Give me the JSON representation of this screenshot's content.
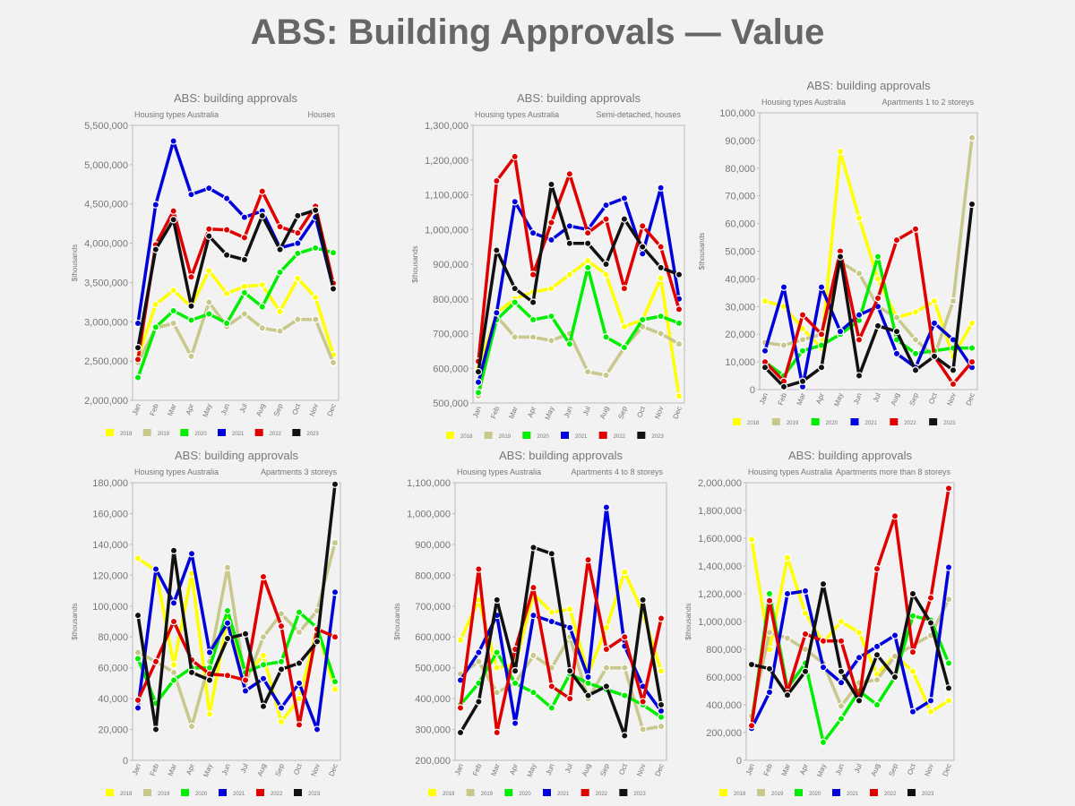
{
  "title": "ABS: Building Approvals — Value",
  "colors": {
    "2018": "#ffff00",
    "2019": "#c8c88c",
    "2020": "#00ee00",
    "2021": "#0000dd",
    "2022": "#e00000",
    "2023": "#111111",
    "marker_edge": "#ffffff",
    "plot_border": "#bbbbbb",
    "text": "#777777"
  },
  "chart_data": [
    {
      "type": "line",
      "title": "ABS: building approvals",
      "subtitle_left": "Housing types Australia",
      "subtitle_right": "Houses",
      "ylabel": "$thousands",
      "ylim": [
        2000000,
        5500000
      ],
      "yticks": [
        2000000,
        2500000,
        3000000,
        3500000,
        4000000,
        4500000,
        5000000,
        5500000
      ],
      "categories": [
        "Jan",
        "Feb",
        "Mar",
        "Apr",
        "May",
        "Jun",
        "Jul",
        "Aug",
        "Sep",
        "Oct",
        "Nov",
        "Dec"
      ],
      "series": [
        {
          "name": "2018",
          "values": [
            2550000,
            3220000,
            3400000,
            3190000,
            3650000,
            3360000,
            3450000,
            3470000,
            3130000,
            3550000,
            3310000,
            2580000
          ]
        },
        {
          "name": "2019",
          "values": [
            2480000,
            2920000,
            2980000,
            2560000,
            3250000,
            2940000,
            3100000,
            2920000,
            2880000,
            3030000,
            3030000,
            2480000
          ]
        },
        {
          "name": "2020",
          "values": [
            2290000,
            2930000,
            3140000,
            3020000,
            3100000,
            2980000,
            3370000,
            3190000,
            3630000,
            3870000,
            3940000,
            3880000
          ]
        },
        {
          "name": "2021",
          "values": [
            2980000,
            4490000,
            5300000,
            4620000,
            4700000,
            4570000,
            4330000,
            4410000,
            3940000,
            4000000,
            4330000,
            3430000
          ]
        },
        {
          "name": "2022",
          "values": [
            2520000,
            3980000,
            4410000,
            3570000,
            4180000,
            4170000,
            4070000,
            4660000,
            4210000,
            4130000,
            4470000,
            3490000
          ]
        },
        {
          "name": "2023",
          "values": [
            2670000,
            3920000,
            4300000,
            3200000,
            4090000,
            3850000,
            3790000,
            4350000,
            3920000,
            4350000,
            4420000,
            3420000
          ]
        }
      ]
    },
    {
      "type": "line",
      "title": "ABS: building approvals",
      "subtitle_left": "Housing types Australia",
      "subtitle_right": "Semi-detached, houses",
      "ylabel": "$thousands",
      "ylim": [
        500000,
        1300000
      ],
      "yticks": [
        500000,
        600000,
        700000,
        800000,
        900000,
        1000000,
        1100000,
        1200000,
        1300000
      ],
      "categories": [
        "Jan",
        "Feb",
        "Mar",
        "Apr",
        "May",
        "Jun",
        "Jul",
        "Aug",
        "Sep",
        "Oct",
        "Nov",
        "Dec"
      ],
      "series": [
        {
          "name": "2018",
          "values": [
            600000,
            760000,
            800000,
            820000,
            830000,
            870000,
            910000,
            870000,
            720000,
            740000,
            860000,
            520000
          ]
        },
        {
          "name": "2019",
          "values": [
            520000,
            750000,
            690000,
            690000,
            680000,
            700000,
            590000,
            580000,
            660000,
            720000,
            700000,
            670000
          ]
        },
        {
          "name": "2020",
          "values": [
            530000,
            740000,
            790000,
            740000,
            750000,
            670000,
            890000,
            690000,
            660000,
            740000,
            750000,
            730000
          ]
        },
        {
          "name": "2021",
          "values": [
            560000,
            760000,
            1080000,
            990000,
            970000,
            1010000,
            1000000,
            1070000,
            1090000,
            930000,
            1120000,
            800000
          ]
        },
        {
          "name": "2022",
          "values": [
            620000,
            1140000,
            1210000,
            870000,
            1020000,
            1160000,
            990000,
            1030000,
            830000,
            1010000,
            950000,
            770000
          ]
        },
        {
          "name": "2023",
          "values": [
            590000,
            940000,
            830000,
            790000,
            1130000,
            960000,
            960000,
            900000,
            1030000,
            950000,
            890000,
            870000
          ]
        }
      ]
    },
    {
      "type": "line",
      "title": "ABS: building approvals",
      "subtitle_left": "Housing types Australia",
      "subtitle_right": "Apartments 1 to 2 storeys",
      "ylabel": "$thousands",
      "ylim": [
        0,
        100000
      ],
      "yticks": [
        0,
        10000,
        20000,
        30000,
        40000,
        50000,
        60000,
        70000,
        80000,
        90000,
        100000
      ],
      "categories": [
        "Jan",
        "Feb",
        "Mar",
        "Apr",
        "May",
        "Jun",
        "Jul",
        "Aug",
        "Sep",
        "Oct",
        "Nov",
        "Dec"
      ],
      "series": [
        {
          "name": "2018",
          "values": [
            32000,
            30000,
            22000,
            15000,
            86000,
            62000,
            40000,
            26000,
            28000,
            32000,
            12000,
            24000
          ]
        },
        {
          "name": "2019",
          "values": [
            17000,
            16000,
            18000,
            20000,
            46000,
            42000,
            30000,
            26000,
            18000,
            12000,
            32000,
            91000
          ]
        },
        {
          "name": "2020",
          "values": [
            10000,
            5000,
            14000,
            16000,
            20000,
            25000,
            48000,
            18000,
            13000,
            14000,
            15000,
            15000
          ]
        },
        {
          "name": "2021",
          "values": [
            14000,
            37000,
            1000,
            37000,
            21000,
            27000,
            30000,
            13000,
            8000,
            24000,
            18000,
            8000
          ]
        },
        {
          "name": "2022",
          "values": [
            10000,
            3000,
            27000,
            20000,
            50000,
            18000,
            33000,
            54000,
            58000,
            12000,
            2000,
            10000
          ]
        },
        {
          "name": "2023",
          "values": [
            8000,
            1000,
            3000,
            8000,
            48000,
            5000,
            23000,
            21000,
            7000,
            12000,
            7000,
            67000
          ]
        }
      ]
    },
    {
      "type": "line",
      "title": "ABS: building approvals",
      "subtitle_left": "Housing types Australia",
      "subtitle_right": "Apartments 3 storeys",
      "ylabel": "$thousands",
      "ylim": [
        0,
        180000
      ],
      "yticks": [
        0,
        20000,
        40000,
        60000,
        80000,
        100000,
        120000,
        140000,
        160000,
        180000
      ],
      "categories": [
        "Jan",
        "Feb",
        "Mar",
        "Apr",
        "May",
        "Jun",
        "Jul",
        "Aug",
        "Sep",
        "Oct",
        "Nov",
        "Dec"
      ],
      "series": [
        {
          "name": "2018",
          "values": [
            131000,
            123000,
            62000,
            121000,
            30000,
            92000,
            55000,
            68000,
            25000,
            40000,
            85000,
            46000
          ]
        },
        {
          "name": "2019",
          "values": [
            70000,
            64000,
            57000,
            22000,
            64000,
            125000,
            50000,
            80000,
            95000,
            83000,
            97000,
            141000
          ]
        },
        {
          "name": "2020",
          "values": [
            66000,
            37000,
            52000,
            60000,
            60000,
            97000,
            57000,
            62000,
            64000,
            96000,
            86000,
            51000
          ]
        },
        {
          "name": "2021",
          "values": [
            34000,
            124000,
            102000,
            134000,
            70000,
            89000,
            45000,
            53000,
            34000,
            50000,
            20000,
            109000
          ]
        },
        {
          "name": "2022",
          "values": [
            39000,
            64000,
            90000,
            65000,
            56000,
            55000,
            52000,
            119000,
            87000,
            23000,
            85000,
            80000
          ]
        },
        {
          "name": "2023",
          "values": [
            94000,
            20000,
            136000,
            57000,
            52000,
            79000,
            82000,
            35000,
            59000,
            63000,
            77000,
            179000
          ]
        }
      ]
    },
    {
      "type": "line",
      "title": "ABS: building approvals",
      "subtitle_left": "Housing types Australia",
      "subtitle_right": "Apartments 4 to 8 storeys",
      "ylabel": "$thousands",
      "ylim": [
        200000,
        1100000
      ],
      "yticks": [
        200000,
        300000,
        400000,
        500000,
        600000,
        700000,
        800000,
        900000,
        1000000,
        1100000
      ],
      "categories": [
        "Jan",
        "Feb",
        "Mar",
        "Apr",
        "May",
        "Jun",
        "Jul",
        "Aug",
        "Sep",
        "Oct",
        "Nov",
        "Dec"
      ],
      "series": [
        {
          "name": "2018",
          "values": [
            590000,
            720000,
            500000,
            510000,
            740000,
            680000,
            690000,
            480000,
            630000,
            810000,
            680000,
            490000
          ]
        },
        {
          "name": "2019",
          "values": [
            480000,
            520000,
            420000,
            450000,
            540000,
            500000,
            600000,
            400000,
            500000,
            500000,
            300000,
            310000
          ]
        },
        {
          "name": "2020",
          "values": [
            380000,
            450000,
            550000,
            450000,
            420000,
            370000,
            480000,
            450000,
            430000,
            410000,
            380000,
            340000
          ]
        },
        {
          "name": "2021",
          "values": [
            460000,
            550000,
            670000,
            320000,
            670000,
            650000,
            630000,
            470000,
            1020000,
            570000,
            440000,
            360000
          ]
        },
        {
          "name": "2022",
          "values": [
            370000,
            820000,
            290000,
            560000,
            760000,
            440000,
            400000,
            850000,
            560000,
            600000,
            390000,
            660000
          ]
        },
        {
          "name": "2023",
          "values": [
            290000,
            390000,
            720000,
            490000,
            890000,
            870000,
            490000,
            410000,
            440000,
            280000,
            720000,
            380000
          ]
        }
      ]
    },
    {
      "type": "line",
      "title": "ABS: building approvals",
      "subtitle_left": "Housing types Australia",
      "subtitle_right": "Apartments  more than 8 storeys",
      "ylabel": "$thousands",
      "ylim": [
        0,
        2000000
      ],
      "yticks": [
        0,
        200000,
        400000,
        600000,
        800000,
        1000000,
        1200000,
        1400000,
        1600000,
        1800000,
        2000000
      ],
      "categories": [
        "Jan",
        "Feb",
        "Mar",
        "Apr",
        "May",
        "Jun",
        "Jul",
        "Aug",
        "Sep",
        "Oct",
        "Nov",
        "Dec"
      ],
      "series": [
        {
          "name": "2018",
          "values": [
            1590000,
            800000,
            1460000,
            1060000,
            850000,
            1000000,
            920000,
            620000,
            760000,
            640000,
            350000,
            430000
          ]
        },
        {
          "name": "2019",
          "values": [
            320000,
            920000,
            880000,
            800000,
            700000,
            390000,
            560000,
            580000,
            750000,
            830000,
            900000,
            1160000
          ]
        },
        {
          "name": "2020",
          "values": [
            260000,
            1200000,
            520000,
            700000,
            130000,
            300000,
            500000,
            400000,
            600000,
            1040000,
            1010000,
            700000
          ]
        },
        {
          "name": "2021",
          "values": [
            230000,
            490000,
            1200000,
            1220000,
            670000,
            560000,
            740000,
            820000,
            900000,
            350000,
            430000,
            1390000
          ]
        },
        {
          "name": "2022",
          "values": [
            250000,
            1150000,
            490000,
            910000,
            860000,
            860000,
            430000,
            1380000,
            1760000,
            780000,
            1170000,
            1960000
          ]
        },
        {
          "name": "2023",
          "values": [
            690000,
            660000,
            470000,
            640000,
            1270000,
            640000,
            430000,
            760000,
            600000,
            1200000,
            990000,
            520000
          ]
        }
      ]
    }
  ]
}
